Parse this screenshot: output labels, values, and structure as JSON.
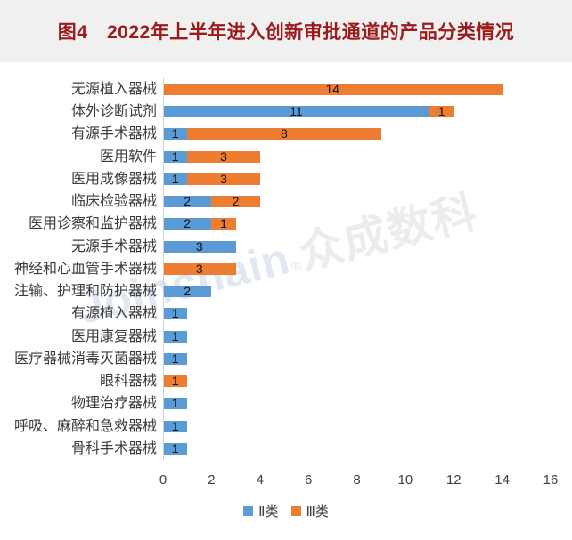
{
  "title": "图4　2022年上半年进入创新审批通道的产品分类情况",
  "watermark": {
    "latin": "Joinchain",
    "reg": "®",
    "cjk": "众成数科"
  },
  "colors": {
    "class2_blue": "#5B9BD5",
    "class3_orange": "#ED7D31",
    "title_text": "#9C1A1A",
    "title_band_bg": "#F0F0F0",
    "axis_line": "#CFCFCF",
    "label_text": "#3B3B3B",
    "watermark_text": "#E2E8F2"
  },
  "legend": [
    {
      "label": "Ⅱ类",
      "color": "#5B9BD5"
    },
    {
      "label": "Ⅲ类",
      "color": "#ED7D31"
    }
  ],
  "chart_data": {
    "type": "bar",
    "orientation": "horizontal",
    "stacked": true,
    "title": "图4　2022年上半年进入创新审批通道的产品分类情况",
    "categories": [
      "无源植入器械",
      "体外诊断试剂",
      "有源手术器械",
      "医用软件",
      "医用成像器械",
      "临床检验器械",
      "医用诊察和监护器械",
      "无源手术器械",
      "神经和心血管手术器械",
      "注输、护理和防护器械",
      "有源植入器械",
      "医用康复器械",
      "医疗器械消毒灭菌器械",
      "眼科器械",
      "物理治疗器械",
      "呼吸、麻醉和急救器械",
      "骨科手术器械"
    ],
    "series": [
      {
        "name": "Ⅱ类",
        "color": "#5B9BD5",
        "values": [
          0,
          11,
          1,
          1,
          1,
          2,
          2,
          3,
          0,
          2,
          1,
          1,
          1,
          0,
          1,
          1,
          1
        ]
      },
      {
        "name": "Ⅲ类",
        "color": "#ED7D31",
        "values": [
          14,
          1,
          8,
          3,
          3,
          2,
          1,
          0,
          3,
          0,
          0,
          0,
          0,
          1,
          0,
          0,
          0
        ]
      }
    ],
    "xlabel": "",
    "ylabel": "",
    "xlim": [
      0,
      16
    ],
    "xticks": [
      0,
      2,
      4,
      6,
      8,
      10,
      12,
      14,
      16
    ],
    "grid": false,
    "data_labels": true,
    "legend_position": "bottom"
  }
}
